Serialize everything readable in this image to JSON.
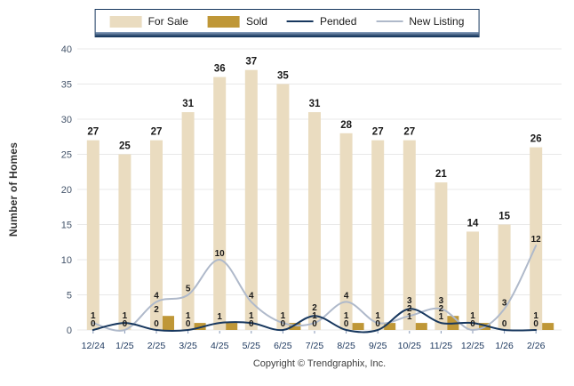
{
  "legend": {
    "items": [
      {
        "label": "For Sale",
        "type": "bar",
        "color": "#EADCC0"
      },
      {
        "label": "Sold",
        "type": "bar",
        "color": "#BF9737"
      },
      {
        "label": "Pended",
        "type": "line",
        "color": "#17375E"
      },
      {
        "label": "New Listing",
        "type": "line",
        "color": "#AFB9CA"
      }
    ]
  },
  "footer": {
    "copyright": "Copyright © Trendgraphix, Inc."
  },
  "colors": {
    "grid": "#E8E8E8",
    "y_tick_text": "#44546A",
    "x_tick_text": "#1F3A60",
    "value_label": "#1a1a1a",
    "axis_tick": "#8496B5"
  },
  "chart_data": {
    "type": "combo-bar-line",
    "title": "",
    "ylabel": "Number of Homes",
    "xlabel": "",
    "ylim": [
      0,
      40
    ],
    "yticks": [
      0,
      5,
      10,
      15,
      20,
      25,
      30,
      35,
      40
    ],
    "grid": true,
    "legend_position": "top",
    "categories": [
      "12/24",
      "1/25",
      "2/25",
      "3/25",
      "4/25",
      "5/25",
      "6/25",
      "7/25",
      "8/25",
      "9/25",
      "10/25",
      "11/25",
      "12/25",
      "1/26",
      "2/26"
    ],
    "series": [
      {
        "name": "For Sale",
        "type": "bar",
        "color": "#EADCC0",
        "values": [
          27,
          25,
          27,
          31,
          36,
          37,
          35,
          31,
          28,
          27,
          27,
          21,
          14,
          15,
          26
        ]
      },
      {
        "name": "Sold",
        "type": "bar",
        "color": "#BF9737",
        "values": [
          0,
          0,
          2,
          1,
          1,
          0,
          1,
          0,
          1,
          1,
          1,
          2,
          1,
          0,
          1
        ]
      },
      {
        "name": "Pended",
        "type": "line",
        "color": "#17375E",
        "values": [
          0,
          1,
          0,
          0,
          1,
          1,
          0,
          2,
          0,
          0,
          3,
          1,
          1,
          0,
          0
        ]
      },
      {
        "name": "New Listing",
        "type": "line",
        "color": "#AFB9CA",
        "values": [
          1,
          0,
          4,
          5,
          10,
          4,
          1,
          1,
          4,
          1,
          2,
          3,
          0,
          3,
          12
        ]
      }
    ]
  }
}
